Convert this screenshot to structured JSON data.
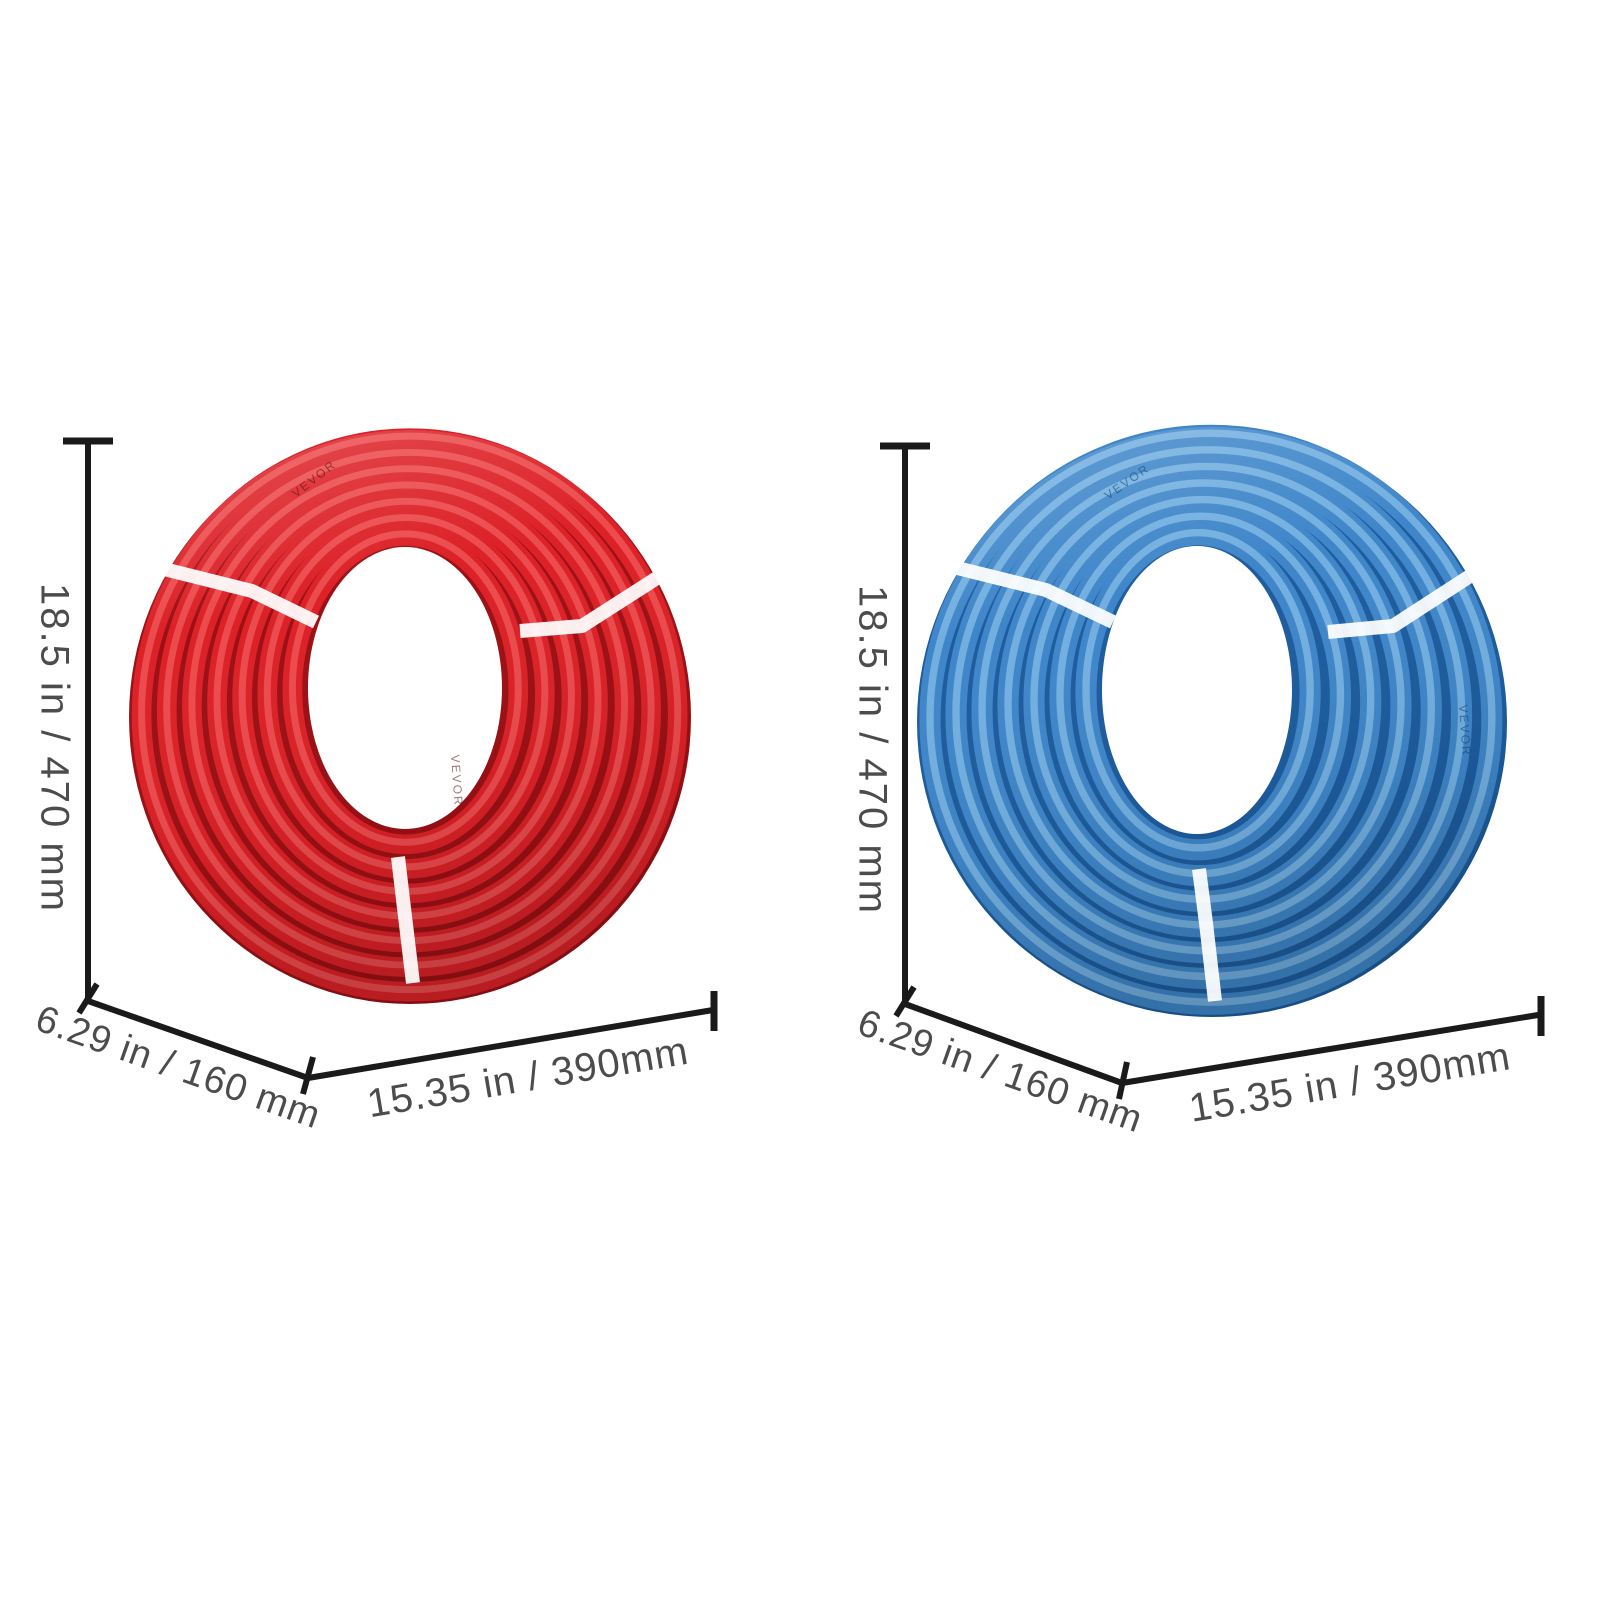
{
  "colors": {
    "background": "#ffffff",
    "dimension_line": "#1a1a1a",
    "label_text": "#4c4c4c",
    "strap": "#ffffff",
    "red_tube": "#dc2127",
    "red_groove": "#9c1014",
    "red_highlight": "#f05658",
    "red_marking": "#55090c",
    "blue_tube": "#3f86c9",
    "blue_groove": "#1d5c9e",
    "blue_highlight": "#7fb9e6",
    "blue_marking": "#123f6e"
  },
  "products": [
    {
      "id": "red-coil",
      "color_name": "red",
      "tube_marking": "VEVOR",
      "dimensions": {
        "height": "18.5 in / 470 mm",
        "depth": "6.29 in / 160 mm",
        "width": "15.35 in / 390mm"
      }
    },
    {
      "id": "blue-coil",
      "color_name": "blue",
      "tube_marking": "VEVOR",
      "dimensions": {
        "height": "18.5 in / 470 mm",
        "depth": "6.29 in / 160 mm",
        "width": "15.35 in / 390mm"
      }
    }
  ]
}
